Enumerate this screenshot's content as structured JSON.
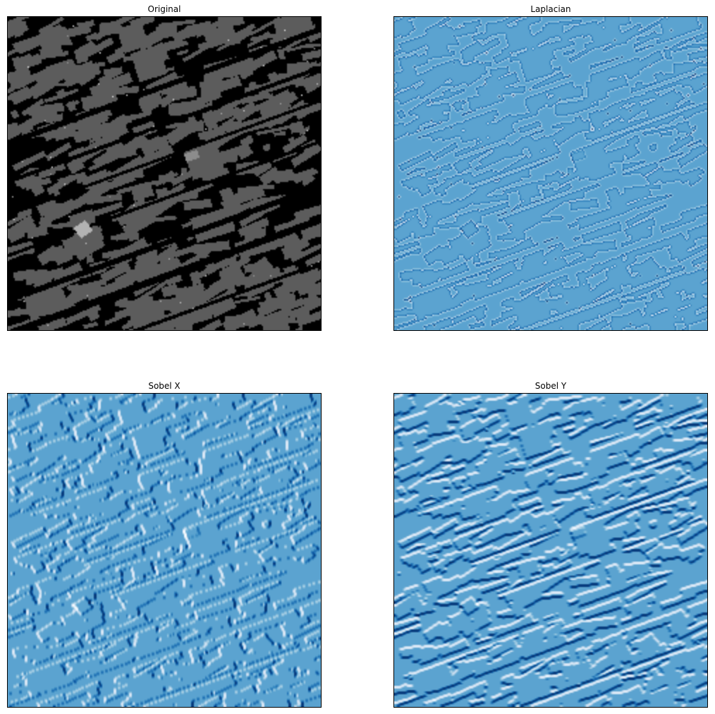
{
  "figure": {
    "panels": [
      {
        "id": "original",
        "title": "Original",
        "colormap": "gray",
        "content": "aerial-city-image"
      },
      {
        "id": "laplacian",
        "title": "Laplacian",
        "colormap": "Blues",
        "content": "laplacian-edge-response"
      },
      {
        "id": "sobelx",
        "title": "Sobel X",
        "colormap": "Blues",
        "content": "sobel-x-gradient"
      },
      {
        "id": "sobely",
        "title": "Sobel Y",
        "colormap": "Blues",
        "content": "sobel-y-gradient"
      }
    ]
  },
  "colors": {
    "background": "#ffffff",
    "frame": "#000000",
    "blues_low": "#f7fbff",
    "blues_mid": "#5a9fd0",
    "blues_high": "#08306b"
  }
}
